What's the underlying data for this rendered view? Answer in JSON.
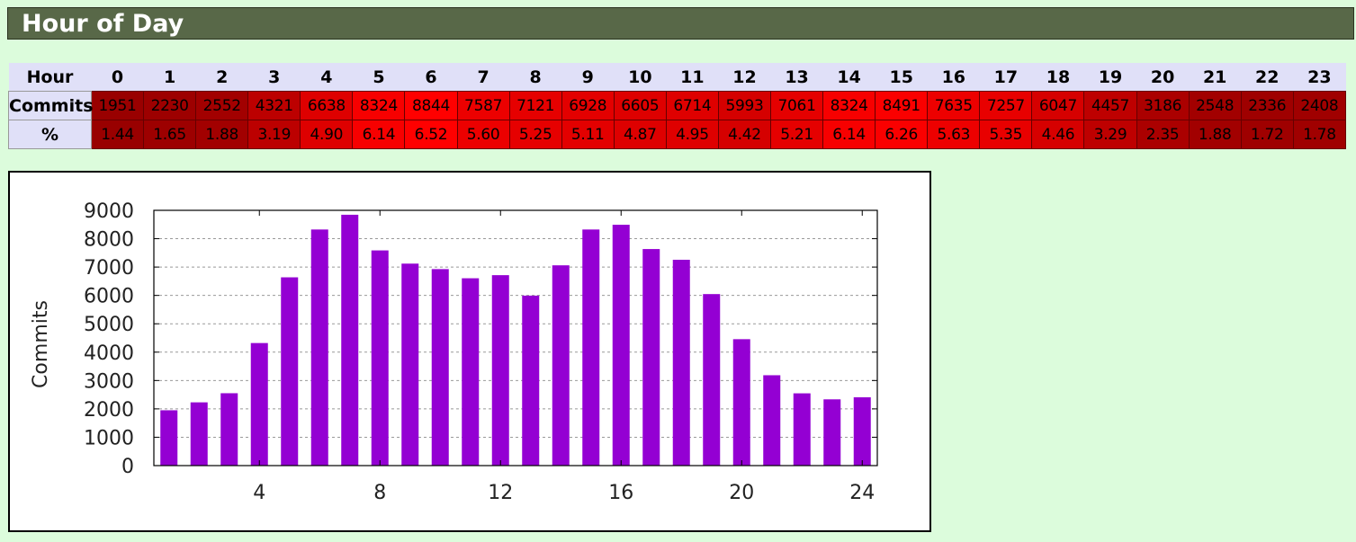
{
  "section_title": "Hour of Day",
  "table": {
    "hour_label": "Hour",
    "commits_label": "Commits",
    "pct_label": "%",
    "hours": [
      "0",
      "1",
      "2",
      "3",
      "4",
      "5",
      "6",
      "7",
      "8",
      "9",
      "10",
      "11",
      "12",
      "13",
      "14",
      "15",
      "16",
      "17",
      "18",
      "19",
      "20",
      "21",
      "22",
      "23"
    ],
    "commits": [
      "1951",
      "2230",
      "2552",
      "4321",
      "6638",
      "8324",
      "8844",
      "7587",
      "7121",
      "6928",
      "6605",
      "6714",
      "5993",
      "7061",
      "8324",
      "8491",
      "7635",
      "7257",
      "6047",
      "4457",
      "3186",
      "2548",
      "2336",
      "2408"
    ],
    "percent": [
      "1.44",
      "1.65",
      "1.88",
      "3.19",
      "4.90",
      "6.14",
      "6.52",
      "5.60",
      "5.25",
      "5.11",
      "4.87",
      "4.95",
      "4.42",
      "5.21",
      "6.14",
      "6.26",
      "5.63",
      "5.35",
      "4.46",
      "3.29",
      "2.35",
      "1.88",
      "1.72",
      "1.78"
    ]
  },
  "colors": {
    "bar": "#9400d3",
    "cell_max": "#ff0000",
    "cell_min": "#990000"
  },
  "chart_data": {
    "type": "bar",
    "x": [
      1,
      2,
      3,
      4,
      5,
      6,
      7,
      8,
      9,
      10,
      11,
      12,
      13,
      14,
      15,
      16,
      17,
      18,
      19,
      20,
      21,
      22,
      23,
      24
    ],
    "values": [
      1951,
      2230,
      2552,
      4321,
      6638,
      8324,
      8844,
      7587,
      7121,
      6928,
      6605,
      6714,
      5993,
      7061,
      8324,
      8491,
      7635,
      7257,
      6047,
      4457,
      3186,
      2548,
      2336,
      2408
    ],
    "ylabel": "Commits",
    "xlabel": "",
    "xlim": [
      0.5,
      24.5
    ],
    "ylim": [
      0,
      9000
    ],
    "yticks": [
      "0",
      "1000",
      "2000",
      "3000",
      "4000",
      "5000",
      "6000",
      "7000",
      "8000",
      "9000"
    ],
    "xticks": [
      "4",
      "8",
      "12",
      "16",
      "20",
      "24"
    ],
    "grid": "horizontal dashed"
  }
}
